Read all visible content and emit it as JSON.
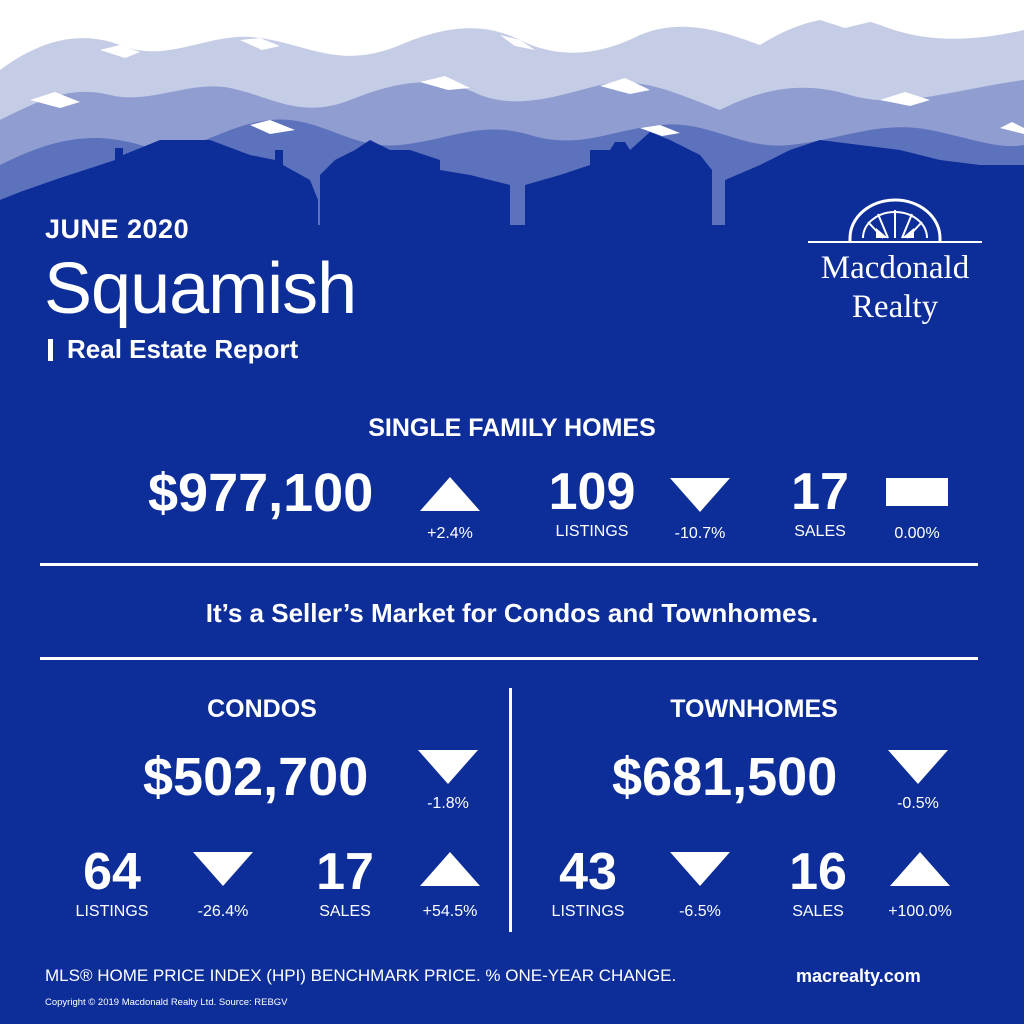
{
  "header": {
    "month": "JUNE 2020",
    "city": "Squamish",
    "report_label": "Real Estate Report"
  },
  "brand": {
    "name_line1": "Macdonald",
    "name_line2": "Realty",
    "logo_icon": "sunrise-window-icon"
  },
  "single_family": {
    "title": "SINGLE FAMILY HOMES",
    "price": "$977,100",
    "price_change": "+2.4%",
    "price_trend": "up",
    "listings": "109",
    "listings_label": "LISTINGS",
    "listings_change": "-10.7%",
    "listings_trend": "down",
    "sales": "17",
    "sales_label": "SALES",
    "sales_change": "0.00%",
    "sales_trend": "flat"
  },
  "tagline": "It’s a Seller’s Market for Condos and Townhomes.",
  "condos": {
    "title": "CONDOS",
    "price": "$502,700",
    "price_change": "-1.8%",
    "price_trend": "down",
    "listings": "64",
    "listings_label": "LISTINGS",
    "listings_change": "-26.4%",
    "listings_trend": "down",
    "sales": "17",
    "sales_label": "SALES",
    "sales_change": "+54.5%",
    "sales_trend": "up"
  },
  "townhomes": {
    "title": "TOWNHOMES",
    "price": "$681,500",
    "price_change": "-0.5%",
    "price_trend": "down",
    "listings": "43",
    "listings_label": "LISTINGS",
    "listings_change": "-6.5%",
    "listings_trend": "down",
    "sales": "16",
    "sales_label": "SALES",
    "sales_change": "+100.0%",
    "sales_trend": "up"
  },
  "footer": {
    "note": "MLS® HOME PRICE INDEX (HPI) BENCHMARK PRICE.  % ONE-YEAR CHANGE.",
    "website": "macrealty.com",
    "copyright": "Copyright © 2019 Macdonald Realty Ltd.  Source: REBGV"
  },
  "colors": {
    "background": "#0d2e99",
    "mountain_far": "#c5cce6",
    "mountain_mid": "#8f9dd0",
    "mountain_near": "#5d72bd",
    "text": "#ffffff"
  }
}
